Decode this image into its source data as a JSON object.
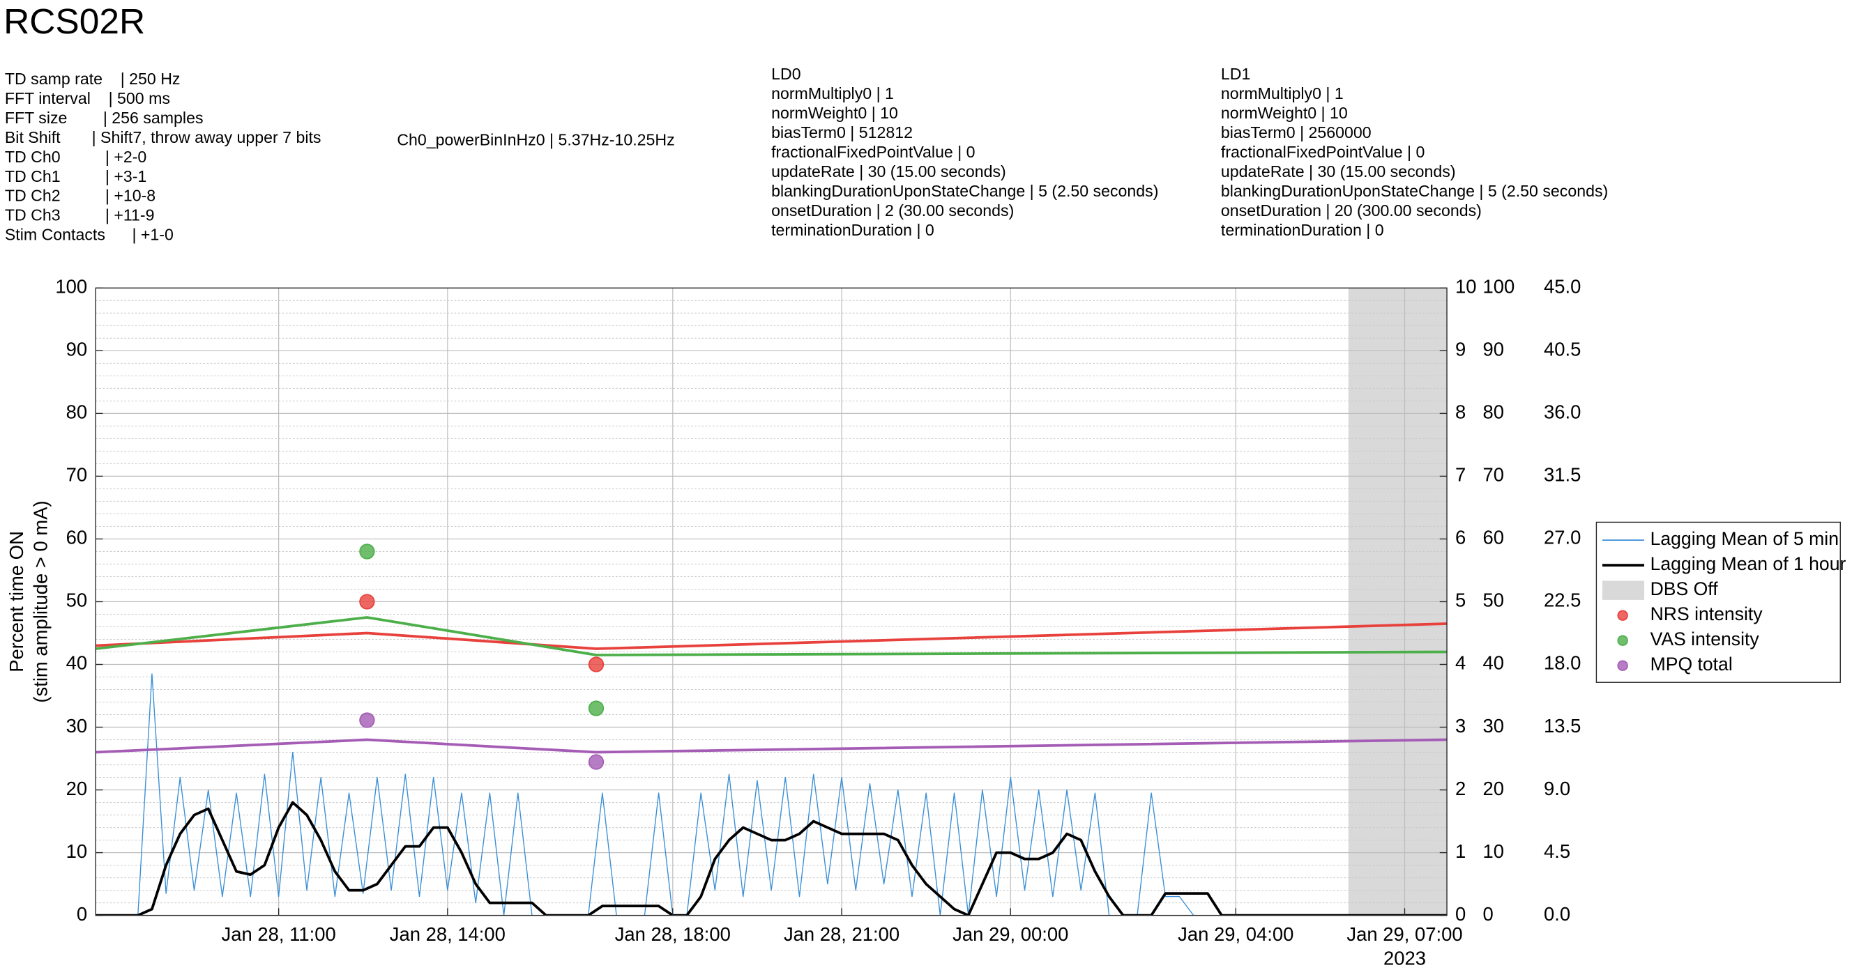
{
  "chart_data": {
    "type": "line",
    "title": "RCS02R",
    "info": {
      "left": [
        "TD samp rate    | 250 Hz",
        "FFT interval    | 500 ms",
        "FFT size        | 256 samples",
        "Bit Shift       | Shift7, throw away upper 7 bits",
        "TD Ch0          | +2-0",
        "TD Ch1          | +3-1",
        "TD Ch2          | +10-8",
        "TD Ch3          | +11-9",
        "Stim Contacts      | +1-0"
      ],
      "middle": [
        "Ch0_powerBinInHz0 | 5.37Hz-10.25Hz"
      ],
      "ld0": [
        "LD0",
        "normMultiply0 | 1",
        "normWeight0 | 10",
        "biasTerm0 | 512812",
        "fractionalFixedPointValue | 0",
        "updateRate | 30 (15.00 seconds)",
        "blankingDurationUponStateChange | 5 (2.50 seconds)",
        "onsetDuration | 2 (30.00 seconds)",
        "terminationDuration | 0"
      ],
      "ld1": [
        "LD1",
        "normMultiply0 | 1",
        "normWeight0 | 10",
        "biasTerm0 | 2560000",
        "fractionalFixedPointValue | 0",
        "updateRate | 30 (15.00 seconds)",
        "blankingDurationUponStateChange | 5 (2.50 seconds)",
        "onsetDuration | 20 (300.00 seconds)",
        "terminationDuration | 0"
      ]
    },
    "ylabel": [
      "Percent time ON",
      "(stim amplitude > 0 mA)"
    ],
    "xlim": [
      7.75,
      31.75
    ],
    "xticks": [
      {
        "value": 11,
        "label": "Jan 28, 11:00"
      },
      {
        "value": 14,
        "label": "Jan 28, 14:00"
      },
      {
        "value": 18,
        "label": "Jan 28, 18:00"
      },
      {
        "value": 21,
        "label": "Jan 28, 21:00"
      },
      {
        "value": 24,
        "label": "Jan 29, 00:00"
      },
      {
        "value": 28,
        "label": "Jan 29, 04:00"
      },
      {
        "value": 31,
        "label": "Jan 29, 07:00"
      }
    ],
    "xaxis_note": "2023",
    "ylim": [
      0,
      100
    ],
    "yticks": [
      0,
      10,
      20,
      30,
      40,
      50,
      60,
      70,
      80,
      90,
      100
    ],
    "yminorticks": [
      2,
      4,
      6,
      8,
      12,
      14,
      16,
      18,
      22,
      24,
      26,
      28,
      32,
      34,
      36,
      38,
      42,
      44,
      46,
      48,
      52,
      54,
      56,
      58,
      62,
      64,
      66,
      68,
      72,
      74,
      76,
      78,
      82,
      84,
      86,
      88,
      92,
      94,
      96,
      98
    ],
    "y2lim": [
      0,
      10
    ],
    "y2ticks": [
      0,
      1,
      2,
      3,
      4,
      5,
      6,
      7,
      8,
      9,
      10
    ],
    "y3lim": [
      0,
      100
    ],
    "y3ticks": [
      0,
      10,
      20,
      30,
      40,
      50,
      60,
      70,
      80,
      90,
      100
    ],
    "y4lim": [
      0,
      45
    ],
    "y4ticks": [
      {
        "value": 0,
        "label": "0.0"
      },
      4.5,
      {
        "value": 9,
        "label": "9.0"
      },
      13.5,
      {
        "value": 18,
        "label": "18.0"
      },
      22.5,
      {
        "value": 27,
        "label": "27.0"
      },
      31.5,
      {
        "value": 36,
        "label": "36.0"
      },
      40.5,
      {
        "value": 45,
        "label": "45.0"
      }
    ],
    "grid": true,
    "x": [
      7.75,
      8,
      8.25,
      8.5,
      8.75,
      9,
      9.25,
      9.5,
      9.75,
      10,
      10.25,
      10.5,
      10.75,
      11,
      11.25,
      11.5,
      11.75,
      12,
      12.25,
      12.5,
      12.75,
      13,
      13.25,
      13.5,
      13.75,
      14,
      14.25,
      14.5,
      14.75,
      15,
      15.25,
      15.5,
      15.75,
      16,
      16.25,
      16.5,
      16.75,
      17,
      17.25,
      17.5,
      17.75,
      18,
      18.25,
      18.5,
      18.75,
      19,
      19.25,
      19.5,
      19.75,
      20,
      20.25,
      20.5,
      20.75,
      21,
      21.25,
      21.5,
      21.75,
      22,
      22.25,
      22.5,
      22.75,
      23,
      23.25,
      23.5,
      23.75,
      24,
      24.25,
      24.5,
      24.75,
      25,
      25.25,
      25.5,
      25.75,
      26,
      26.25,
      26.5,
      26.75,
      27,
      27.25,
      27.5,
      27.75,
      28,
      28.25,
      28.5,
      28.75,
      29,
      29.25,
      29.5,
      29.75,
      30,
      30.25,
      30.5,
      30.75,
      31,
      31.25,
      31.5,
      31.75
    ],
    "shaded": {
      "name": "DBS Off",
      "color": "#d9d9d9",
      "x": [
        30,
        31.75
      ]
    },
    "legend": "right",
    "series": [
      {
        "name": "Lagging Mean of 5 min",
        "type": "line",
        "color": "#3a8fd6",
        "values": [
          0,
          0,
          0,
          0,
          38.5,
          3.5,
          22,
          4,
          20,
          3,
          19.5,
          3,
          22.5,
          3,
          26,
          4,
          22,
          3,
          19.5,
          3.5,
          22,
          4,
          22.5,
          3,
          22,
          4,
          19.5,
          2,
          19.5,
          0,
          19.5,
          0,
          0,
          0,
          0,
          0,
          19.5,
          0,
          0,
          0,
          19.5,
          0,
          0,
          19.5,
          4,
          22.5,
          3,
          21.5,
          4,
          22,
          3,
          22.5,
          5,
          22,
          4,
          21,
          5,
          20,
          3,
          19.5,
          0,
          19.5,
          0,
          20,
          3,
          22,
          4,
          20,
          3,
          20,
          4,
          19.5,
          0,
          0,
          0,
          19.5,
          3,
          3,
          0,
          0,
          0,
          0,
          0,
          0,
          0,
          0,
          0,
          0,
          0,
          0,
          0,
          0,
          0,
          0,
          0,
          0,
          0
        ]
      },
      {
        "name": "Lagging Mean of 1 hour",
        "type": "line",
        "color": "#000000",
        "values": [
          0,
          0,
          0,
          0,
          1,
          8,
          13,
          16,
          17,
          12,
          7,
          6.5,
          8,
          14,
          18,
          16,
          12,
          7,
          4,
          4,
          5,
          8,
          11,
          11,
          14,
          14,
          10,
          5,
          2,
          2,
          2,
          2,
          0,
          0,
          0,
          0,
          1.5,
          1.5,
          1.5,
          1.5,
          1.5,
          0,
          0,
          3,
          9,
          12,
          14,
          13,
          12,
          12,
          13,
          15,
          14,
          13,
          13,
          13,
          13,
          12,
          8,
          5,
          3,
          1,
          0,
          5,
          10,
          10,
          9,
          9,
          10,
          13,
          12,
          7,
          3,
          0,
          0,
          0,
          3.5,
          3.5,
          3.5,
          3.5,
          0,
          0,
          0,
          0,
          0,
          0,
          0,
          0,
          0,
          0,
          0,
          0,
          0,
          0,
          0,
          0,
          0
        ]
      },
      {
        "name": "NRS intensity",
        "type": "scatter",
        "axis": "y2",
        "color": "#e8413c",
        "x": [
          12.57,
          16.64
        ],
        "values": [
          5,
          4
        ],
        "fit_x": [
          7.75,
          12.57,
          16.64,
          31.75
        ],
        "fit_values": [
          4.3,
          4.5,
          4.25,
          4.65
        ]
      },
      {
        "name": "VAS intensity",
        "type": "scatter",
        "axis": "y3",
        "color": "#4daf4a",
        "x": [
          12.57,
          16.64
        ],
        "values": [
          58,
          33
        ],
        "fit_x": [
          7.75,
          12.57,
          16.64,
          31.75
        ],
        "fit_values": [
          42.5,
          47.5,
          41.5,
          42
        ]
      },
      {
        "name": "MPQ total",
        "type": "scatter",
        "axis": "y4",
        "color": "#a45cb5",
        "x": [
          12.57,
          16.64
        ],
        "values": [
          14,
          11
        ],
        "fit_x": [
          7.75,
          12.57,
          16.64,
          31.75
        ],
        "fit_values": [
          11.7,
          12.6,
          11.7,
          12.6
        ]
      }
    ]
  }
}
